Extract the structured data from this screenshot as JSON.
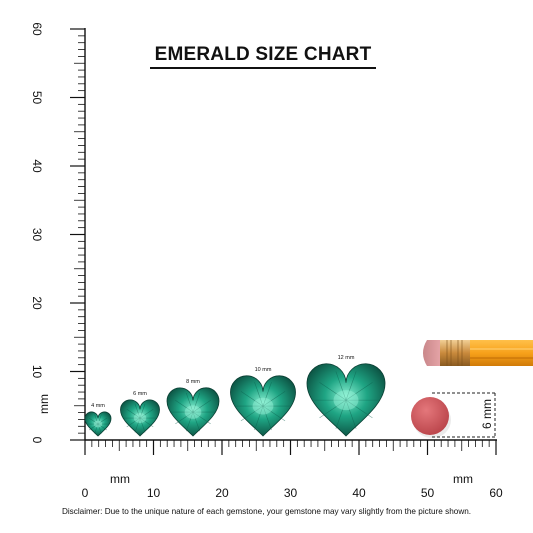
{
  "title": "EMERALD SIZE CHART",
  "disclaimer": "Disclaimer: Due to the unique nature of each gemstone, your gemstone may vary slightly from the picture shown.",
  "vertical_ruler": {
    "labels": [
      "0",
      "10",
      "20",
      "30",
      "40",
      "50",
      "60"
    ],
    "unit_label": "mm"
  },
  "horizontal_ruler": {
    "labels": [
      "0",
      "10",
      "20",
      "30",
      "40",
      "50",
      "60"
    ],
    "unit_labels": [
      "mm",
      "mm"
    ]
  },
  "gems": [
    {
      "label": "4 mm",
      "size_mm": 4
    },
    {
      "label": "6 mm",
      "size_mm": 6
    },
    {
      "label": "8 mm",
      "size_mm": 8
    },
    {
      "label": "10 mm",
      "size_mm": 10
    },
    {
      "label": "12 mm",
      "size_mm": 12
    }
  ],
  "eraser_dimension": "6 mm",
  "colors": {
    "emerald_dark": "#0b5e4c",
    "emerald_mid": "#1fa584",
    "emerald_light": "#7fe8cc",
    "pencil_body": "#f7a11a",
    "pencil_ferrule": "#d99a4a",
    "eraser": "#d2585c"
  }
}
